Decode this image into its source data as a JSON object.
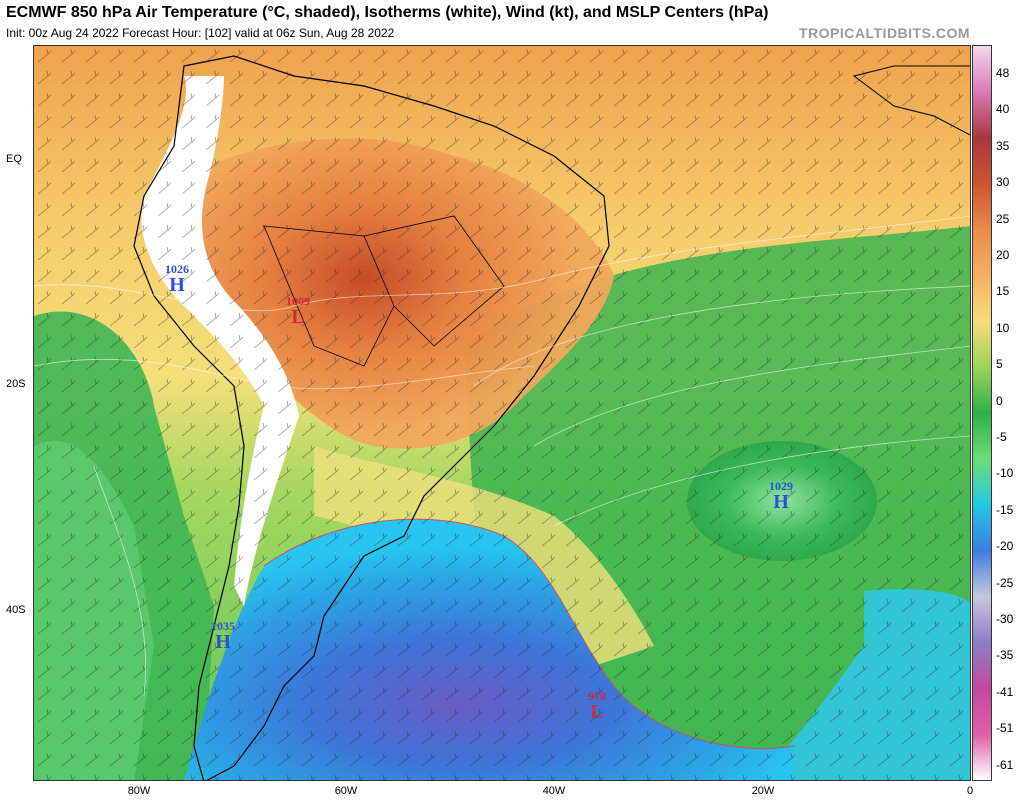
{
  "header": {
    "title": "ECMWF 850 hPa Air Temperature (°C, shaded), Isotherms (white), Wind (kt), and MSLP Centers (hPa)",
    "subtitle": "Init: 00z Aug 24 2022   Forecast Hour: [102]   valid at 06z Sun, Aug 28 2022",
    "brand": "TROPICALTIDBITS.COM"
  },
  "axes": {
    "lat_labels": [
      "EQ",
      "20S",
      "40S"
    ],
    "lon_labels": [
      "80W",
      "60W",
      "40W",
      "20W",
      "0"
    ]
  },
  "colorbar": {
    "ticks": [
      "48",
      "40",
      "35",
      "30",
      "25",
      "20",
      "15",
      "10",
      "5",
      "0",
      "-5",
      "-10",
      "-15",
      "-20",
      "-25",
      "-30",
      "-35",
      "-41",
      "-51",
      "-61"
    ],
    "colors": [
      "#f3d9ec",
      "#d879b8",
      "#a8383f",
      "#cc5530",
      "#e98a4a",
      "#f4b064",
      "#f6dc7a",
      "#9bd35a",
      "#2fb04a",
      "#6edc78",
      "#24c8e6",
      "#3b7ee0",
      "#c9c6dc",
      "#8e7cc6",
      "#c34aa0",
      "#de5fa8",
      "#ffffff"
    ]
  },
  "pressure_centers": [
    {
      "value": "1026",
      "symbol": "H",
      "type": "high",
      "color": "#2a50d8"
    },
    {
      "value": "1009",
      "symbol": "L",
      "type": "low",
      "color": "#d0283c"
    },
    {
      "value": "1029",
      "symbol": "H",
      "type": "high",
      "color": "#2a50d8"
    },
    {
      "value": "1035",
      "symbol": "H",
      "type": "high",
      "color": "#2a50d8"
    },
    {
      "value": "970",
      "symbol": "L",
      "type": "low",
      "color": "#d0283c"
    }
  ],
  "colors": {
    "land_border": "#000000",
    "high_center": "#2a50d8",
    "low_center": "#d0283c"
  }
}
